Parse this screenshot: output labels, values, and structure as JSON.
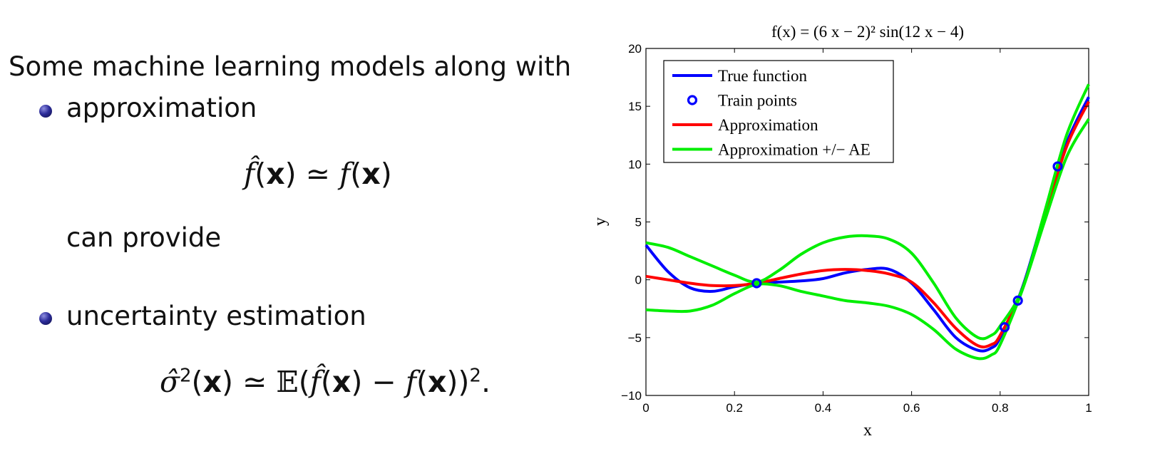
{
  "slide": {
    "intro": "Some machine learning models along with",
    "bullets": [
      {
        "label": "approximation"
      },
      {
        "label": "uncertainty estimation"
      }
    ],
    "between": "can provide"
  },
  "chart_data": {
    "type": "line",
    "title": "f(x) = (6 x − 2)² sin(12 x − 4)",
    "xlabel": "x",
    "ylabel": "y",
    "xlim": [
      0,
      1
    ],
    "ylim": [
      -10,
      20
    ],
    "x_ticks": [
      "0",
      "0.2",
      "0.4",
      "0.6",
      "0.8",
      "1"
    ],
    "y_ticks": [
      "−10",
      "−5",
      "0",
      "5",
      "10",
      "15",
      "20"
    ],
    "legend_position": "top-left",
    "grid": false,
    "series": [
      {
        "name": "True function",
        "color": "#0000ff",
        "style": "line",
        "x": [
          0,
          0.05,
          0.1,
          0.15,
          0.2,
          0.25,
          0.3,
          0.35,
          0.4,
          0.45,
          0.5,
          0.55,
          0.6,
          0.65,
          0.7,
          0.75,
          0.78,
          0.8,
          0.85,
          0.9,
          0.95,
          1
        ],
        "y": [
          3.0,
          0.7,
          -0.7,
          -1.0,
          -0.6,
          -0.3,
          -0.2,
          -0.1,
          0.1,
          0.6,
          0.9,
          0.9,
          -0.3,
          -2.6,
          -5.0,
          -6.1,
          -5.9,
          -5.0,
          -0.7,
          5.7,
          11.8,
          15.8
        ]
      },
      {
        "name": "Train points",
        "color": "#0000ff",
        "style": "markers",
        "x": [
          0.25,
          0.81,
          0.84,
          0.93
        ],
        "y": [
          -0.3,
          -4.1,
          -1.8,
          9.8
        ]
      },
      {
        "name": "Approximation",
        "color": "#ff0000",
        "style": "line",
        "x": [
          0,
          0.05,
          0.1,
          0.15,
          0.2,
          0.25,
          0.3,
          0.35,
          0.4,
          0.45,
          0.5,
          0.55,
          0.6,
          0.65,
          0.7,
          0.75,
          0.78,
          0.8,
          0.85,
          0.9,
          0.95,
          1
        ],
        "y": [
          0.3,
          0.0,
          -0.3,
          -0.5,
          -0.5,
          -0.3,
          0.1,
          0.5,
          0.8,
          0.9,
          0.8,
          0.5,
          -0.2,
          -2.0,
          -4.2,
          -5.7,
          -5.6,
          -4.8,
          -0.8,
          5.4,
          11.5,
          15.4
        ]
      },
      {
        "name": "Approximation +/− AE",
        "color": "#00ee00",
        "style": "line",
        "x": [
          0,
          0.05,
          0.1,
          0.15,
          0.2,
          0.25,
          0.3,
          0.35,
          0.4,
          0.45,
          0.5,
          0.55,
          0.6,
          0.65,
          0.7,
          0.75,
          0.78,
          0.8,
          0.85,
          0.9,
          0.95,
          1
        ],
        "y": [
          3.2,
          2.8,
          2.0,
          1.2,
          0.4,
          -0.2,
          0.8,
          2.2,
          3.2,
          3.7,
          3.8,
          3.5,
          2.3,
          -0.3,
          -3.3,
          -5.0,
          -4.8,
          -4.0,
          -0.8,
          5.8,
          12.5,
          16.9
        ]
      },
      {
        "name": "",
        "color": "#00ee00",
        "style": "line",
        "x": [
          0,
          0.05,
          0.1,
          0.15,
          0.2,
          0.25,
          0.3,
          0.35,
          0.4,
          0.45,
          0.5,
          0.55,
          0.6,
          0.65,
          0.7,
          0.75,
          0.78,
          0.8,
          0.85,
          0.9,
          0.95,
          1
        ],
        "y": [
          -2.6,
          -2.7,
          -2.7,
          -2.2,
          -1.2,
          -0.4,
          -0.5,
          -1.0,
          -1.4,
          -1.8,
          -2.0,
          -2.3,
          -3.0,
          -4.3,
          -6.0,
          -6.8,
          -6.5,
          -5.6,
          -0.9,
          5.0,
          10.6,
          13.9
        ]
      }
    ]
  }
}
